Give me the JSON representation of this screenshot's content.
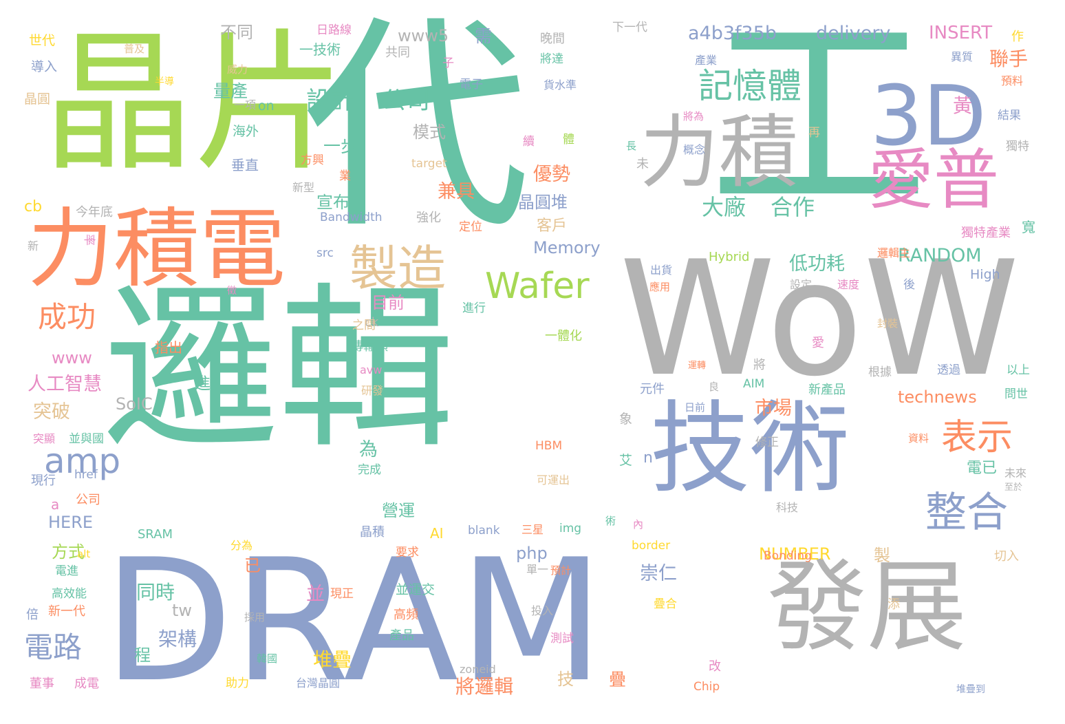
{
  "palette": {
    "teal": "#66c2a5",
    "orange": "#fc8d62",
    "blue": "#8da0cb",
    "pink": "#e78ac3",
    "green": "#a6d854",
    "yellow": "#ffd92f",
    "tan": "#e5c494",
    "gray": "#b3b3b3"
  },
  "words": [
    {
      "text": "晶片",
      "color": "green"
    },
    {
      "text": "代",
      "color": "teal"
    },
    {
      "text": "工",
      "color": "teal"
    },
    {
      "text": "邏輯",
      "color": "teal"
    },
    {
      "text": "DRAM",
      "color": "blue"
    },
    {
      "text": "WoW",
      "color": "gray"
    },
    {
      "text": "力積電",
      "color": "orange"
    },
    {
      "text": "技術",
      "color": "blue"
    },
    {
      "text": "發展",
      "color": "gray"
    },
    {
      "text": "力積",
      "color": "gray"
    },
    {
      "text": "3D",
      "color": "blue"
    },
    {
      "text": "愛普",
      "color": "pink"
    },
    {
      "text": "製造",
      "color": "tan"
    },
    {
      "text": "記憶體",
      "color": "teal"
    },
    {
      "text": "Wafer",
      "color": "green"
    },
    {
      "text": "整合",
      "color": "blue"
    },
    {
      "text": "表示",
      "color": "orange"
    },
    {
      "text": "amp",
      "color": "blue"
    },
    {
      "text": "設計",
      "color": "teal"
    },
    {
      "text": "公司",
      "color": "teal"
    },
    {
      "text": "成功",
      "color": "orange"
    },
    {
      "text": "電路",
      "color": "blue"
    },
    {
      "text": "a4b3f35b",
      "color": "blue"
    },
    {
      "text": "delivery",
      "color": "blue"
    },
    {
      "text": "INSERT",
      "color": "pink"
    },
    {
      "text": "聯手",
      "color": "orange"
    },
    {
      "text": "黃",
      "color": "pink"
    },
    {
      "text": "大廠",
      "color": "teal"
    },
    {
      "text": "合作",
      "color": "teal"
    },
    {
      "text": "RANDOM",
      "color": "teal"
    },
    {
      "text": "technews",
      "color": "orange"
    },
    {
      "text": "Memory",
      "color": "blue"
    },
    {
      "text": "晶圓堆",
      "color": "blue"
    },
    {
      "text": "優勢",
      "color": "orange"
    },
    {
      "text": "兼具",
      "color": "orange"
    },
    {
      "text": "低功耗",
      "color": "teal"
    },
    {
      "text": "人工智慧",
      "color": "pink"
    },
    {
      "text": "www",
      "color": "pink"
    },
    {
      "text": "www5",
      "color": "gray"
    },
    {
      "text": "需",
      "color": "blue"
    },
    {
      "text": "同時",
      "color": "teal"
    },
    {
      "text": "架構",
      "color": "blue"
    },
    {
      "text": "堆疊",
      "color": "yellow"
    },
    {
      "text": "將邏輯",
      "color": "orange"
    },
    {
      "text": "NUMBER",
      "color": "yellow"
    },
    {
      "text": "市場",
      "color": "orange"
    },
    {
      "text": "崇仁",
      "color": "blue"
    },
    {
      "text": "SoIC",
      "color": "gray"
    },
    {
      "text": "突破",
      "color": "tan"
    },
    {
      "text": "HERE",
      "color": "blue"
    },
    {
      "text": "php",
      "color": "blue"
    },
    {
      "text": "量產",
      "color": "teal"
    },
    {
      "text": "不同",
      "color": "gray"
    },
    {
      "text": "一技術",
      "color": "teal"
    },
    {
      "text": "宣布",
      "color": "teal"
    },
    {
      "text": "目前",
      "color": "pink"
    },
    {
      "text": "營運",
      "color": "teal"
    },
    {
      "text": "一步",
      "color": "teal"
    },
    {
      "text": "模式",
      "color": "gray"
    },
    {
      "text": "客戶",
      "color": "tan"
    },
    {
      "text": "晶圓",
      "color": "tan"
    },
    {
      "text": "世代",
      "color": "yellow"
    },
    {
      "text": "導入",
      "color": "blue"
    },
    {
      "text": "海外",
      "color": "teal"
    },
    {
      "text": "垂直",
      "color": "blue"
    },
    {
      "text": "on",
      "color": "teal"
    },
    {
      "text": "cb",
      "color": "yellow"
    },
    {
      "text": "今年底",
      "color": "gray"
    },
    {
      "text": "新",
      "color": "gray"
    },
    {
      "text": "率",
      "color": "pink"
    },
    {
      "text": "ck",
      "color": "gray"
    },
    {
      "text": "指出",
      "color": "orange"
    },
    {
      "text": "電已",
      "color": "teal"
    },
    {
      "text": "程",
      "color": "teal"
    },
    {
      "text": "tw",
      "color": "gray"
    },
    {
      "text": "AI",
      "color": "yellow"
    },
    {
      "text": "晶積",
      "color": "blue"
    },
    {
      "text": "a",
      "color": "pink"
    },
    {
      "text": "公司",
      "color": "orange"
    },
    {
      "text": "現行",
      "color": "blue"
    },
    {
      "text": "href",
      "color": "blue"
    },
    {
      "text": "SRAM",
      "color": "teal"
    },
    {
      "text": "blank",
      "color": "blue"
    },
    {
      "text": "三星",
      "color": "orange"
    },
    {
      "text": "img",
      "color": "teal"
    },
    {
      "text": "border",
      "color": "yellow"
    },
    {
      "text": "Bonding",
      "color": "orange"
    },
    {
      "text": "切入",
      "color": "tan"
    },
    {
      "text": "High",
      "color": "blue"
    },
    {
      "text": "Hybrid",
      "color": "green"
    },
    {
      "text": "Bandwidth",
      "color": "blue"
    },
    {
      "text": "強化",
      "color": "gray"
    },
    {
      "text": "定位",
      "color": "orange"
    },
    {
      "text": "獨特產業",
      "color": "pink"
    },
    {
      "text": "寬",
      "color": "teal"
    },
    {
      "text": "晚間",
      "color": "gray"
    },
    {
      "text": "下一代",
      "color": "gray"
    },
    {
      "text": "將達",
      "color": "teal"
    },
    {
      "text": "產業",
      "color": "blue"
    },
    {
      "text": "異質",
      "color": "blue"
    },
    {
      "text": "預料",
      "color": "orange"
    },
    {
      "text": "結果",
      "color": "blue"
    },
    {
      "text": "獨特",
      "color": "gray"
    },
    {
      "text": "作",
      "color": "yellow"
    },
    {
      "text": "再",
      "color": "tan"
    },
    {
      "text": "一體化",
      "color": "green"
    },
    {
      "text": "進行",
      "color": "teal"
    },
    {
      "text": "傳輸頻",
      "color": "teal"
    },
    {
      "text": "avw",
      "color": "pink"
    },
    {
      "text": "研發",
      "color": "tan"
    },
    {
      "text": "AIM",
      "color": "teal"
    },
    {
      "text": "新產品",
      "color": "teal"
    },
    {
      "text": "根據",
      "color": "gray"
    },
    {
      "text": "透過",
      "color": "blue"
    },
    {
      "text": "以上",
      "color": "teal"
    },
    {
      "text": "問世",
      "color": "teal"
    },
    {
      "text": "元件",
      "color": "blue"
    },
    {
      "text": "日前",
      "color": "blue"
    },
    {
      "text": "修正",
      "color": "gray"
    },
    {
      "text": "資料",
      "color": "orange"
    },
    {
      "text": "未來",
      "color": "gray"
    },
    {
      "text": "科技",
      "color": "gray"
    },
    {
      "text": "至於",
      "color": "gray"
    },
    {
      "text": "HBM",
      "color": "orange"
    },
    {
      "text": "完成",
      "color": "teal"
    },
    {
      "text": "要求",
      "color": "orange"
    },
    {
      "text": "並",
      "color": "pink"
    },
    {
      "text": "並運交",
      "color": "teal"
    },
    {
      "text": "現正",
      "color": "orange"
    },
    {
      "text": "高頻",
      "color": "orange"
    },
    {
      "text": "產品",
      "color": "teal"
    },
    {
      "text": "測試",
      "color": "pink"
    },
    {
      "text": "投入",
      "color": "gray"
    },
    {
      "text": "疊合",
      "color": "yellow"
    },
    {
      "text": "zoneid",
      "color": "gray"
    },
    {
      "text": "台灣晶圓",
      "color": "blue"
    },
    {
      "text": "Chip",
      "color": "orange"
    },
    {
      "text": "堆疊到",
      "color": "blue"
    },
    {
      "text": "改",
      "color": "pink"
    },
    {
      "text": "技",
      "color": "tan"
    },
    {
      "text": "疊",
      "color": "orange"
    },
    {
      "text": "製",
      "color": "tan"
    },
    {
      "text": "高效能",
      "color": "teal"
    },
    {
      "text": "新一代",
      "color": "orange"
    },
    {
      "text": "倍",
      "color": "blue"
    },
    {
      "text": "韓國",
      "color": "teal"
    },
    {
      "text": "董事",
      "color": "pink"
    },
    {
      "text": "成電",
      "color": "pink"
    },
    {
      "text": "助力",
      "color": "yellow"
    },
    {
      "text": "採用",
      "color": "gray"
    },
    {
      "text": "單一",
      "color": "gray"
    },
    {
      "text": "預計",
      "color": "orange"
    },
    {
      "text": "可運出",
      "color": "tan"
    },
    {
      "text": "艾",
      "color": "teal"
    },
    {
      "text": "n",
      "color": "blue"
    },
    {
      "text": "象",
      "color": "gray"
    },
    {
      "text": "術",
      "color": "teal"
    },
    {
      "text": "進",
      "color": "teal"
    },
    {
      "text": "為",
      "color": "teal"
    },
    {
      "text": "已",
      "color": "orange"
    },
    {
      "text": "方式",
      "color": "green"
    },
    {
      "text": "突顯",
      "color": "pink"
    },
    {
      "text": "並與國",
      "color": "teal"
    },
    {
      "text": "電進",
      "color": "teal"
    },
    {
      "text": "alt",
      "color": "yellow"
    },
    {
      "text": "分為",
      "color": "yellow"
    },
    {
      "text": "普及",
      "color": "tan"
    },
    {
      "text": "半導",
      "color": "yellow"
    },
    {
      "text": "威力",
      "color": "tan"
    },
    {
      "text": "日路線",
      "color": "pink"
    },
    {
      "text": "共同",
      "color": "gray"
    },
    {
      "text": "子",
      "color": "pink"
    },
    {
      "text": "電子",
      "color": "blue"
    },
    {
      "text": "一項",
      "color": "gray"
    },
    {
      "text": "貨水準",
      "color": "blue"
    },
    {
      "text": "將為",
      "color": "pink"
    },
    {
      "text": "續",
      "color": "pink"
    },
    {
      "text": "體",
      "color": "green"
    },
    {
      "text": "長",
      "color": "teal"
    },
    {
      "text": "未",
      "color": "gray"
    },
    {
      "text": "概念",
      "color": "blue"
    },
    {
      "text": "target",
      "color": "tan"
    },
    {
      "text": "方興",
      "color": "orange"
    },
    {
      "text": "業",
      "color": "orange"
    },
    {
      "text": "新型",
      "color": "gray"
    },
    {
      "text": "src",
      "color": "blue"
    },
    {
      "text": "出貨",
      "color": "blue"
    },
    {
      "text": "應用",
      "color": "orange"
    },
    {
      "text": "設定",
      "color": "gray"
    },
    {
      "text": "速度",
      "color": "pink"
    },
    {
      "text": "後",
      "color": "blue"
    },
    {
      "text": "邏輯主",
      "color": "orange"
    },
    {
      "text": "徵",
      "color": "pink"
    },
    {
      "text": "之間",
      "color": "tan"
    },
    {
      "text": "愛",
      "color": "pink"
    },
    {
      "text": "封裝",
      "color": "tan"
    },
    {
      "text": "運轉",
      "color": "orange"
    },
    {
      "text": "將",
      "color": "gray"
    },
    {
      "text": "良",
      "color": "gray"
    },
    {
      "text": "內",
      "color": "pink"
    },
    {
      "text": "添",
      "color": "tan"
    }
  ]
}
